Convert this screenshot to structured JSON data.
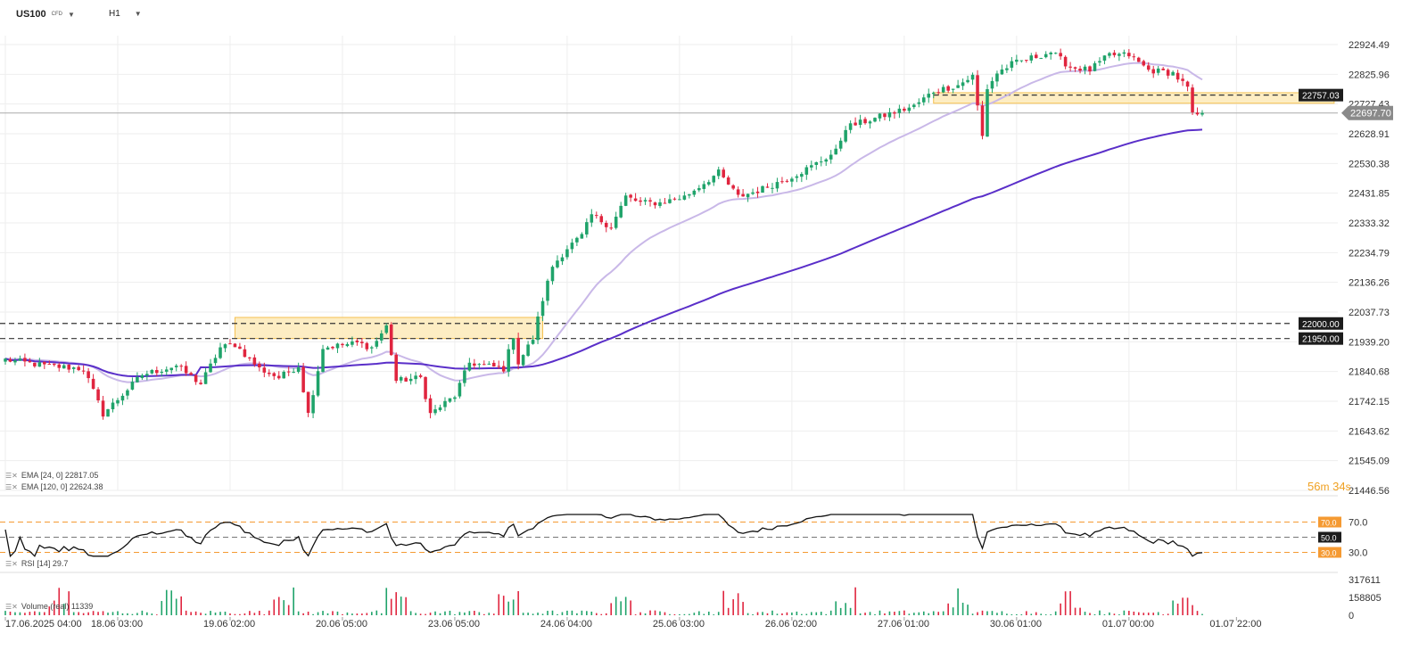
{
  "toolbar": {
    "symbol": "US100",
    "symbol_type": "CFD",
    "timeframe": "H1",
    "dropdown_icon": "chevron-down-icon"
  },
  "price_panel": {
    "y_ticks": [
      "22924.49",
      "22825.96",
      "22727.43",
      "22628.91",
      "22530.38",
      "22431.85",
      "22333.32",
      "22234.79",
      "22136.26",
      "22037.73",
      "21939.20",
      "21840.68",
      "21742.15",
      "21643.62",
      "21545.09",
      "21446.56"
    ],
    "current_price": "22697.70",
    "price_lines": [
      {
        "label": "22757.03",
        "value": 22757.03
      },
      {
        "label": "22000.00",
        "value": 22000.0
      },
      {
        "label": "21950.00",
        "value": 21950.0
      }
    ],
    "zones": [
      {
        "from_index": 47,
        "to_index": 110,
        "low": 21950,
        "high": 22020
      },
      {
        "from_index": 190,
        "to_index": 272,
        "low": 22730,
        "high": 22765
      }
    ],
    "timer": {
      "minutes": "56",
      "m": "m",
      "seconds": "34",
      "s": "s"
    }
  },
  "legends": {
    "ema24": "EMA  [24, 0]  22817.05",
    "ema120": "EMA  [120, 0]  22624.38",
    "rsi": "RSI  [14]  29.7",
    "volume": "Volume  (real)  11339"
  },
  "rsi_panel": {
    "y_ticks": [
      "70.0",
      "30.0"
    ],
    "level_labels": [
      "70.0",
      "50.0",
      "30.0"
    ]
  },
  "volume_panel": {
    "y_ticks": [
      "317611",
      "158805",
      "0"
    ]
  },
  "x_axis": {
    "labels": [
      {
        "text": "17.06.2025  04:00",
        "index": 0
      },
      {
        "text": "18.06  03:00",
        "index": 23
      },
      {
        "text": "19.06  02:00",
        "index": 46
      },
      {
        "text": "20.06  05:00",
        "index": 69
      },
      {
        "text": "23.06  05:00",
        "index": 92
      },
      {
        "text": "24.06  04:00",
        "index": 115
      },
      {
        "text": "25.06  03:00",
        "index": 138
      },
      {
        "text": "26.06  02:00",
        "index": 161
      },
      {
        "text": "27.06  01:00",
        "index": 184
      },
      {
        "text": "30.06  01:00",
        "index": 207
      },
      {
        "text": "01.07  00:00",
        "index": 230
      },
      {
        "text": "01.07  22:00",
        "index": 252
      }
    ]
  },
  "colors": {
    "up": "#1fa36a",
    "down": "#e0253f",
    "ema24": "#c9b8e8",
    "ema120": "#5a2fc9",
    "zone_fill": "#fde9b4",
    "zone_border": "#f5c050",
    "rsi_level": "#f59a32",
    "grid": "#eeeeee"
  },
  "chart_data": {
    "type": "candlestick",
    "symbol": "US100",
    "timeframe": "H1",
    "ylim": [
      21446.56,
      22940
    ],
    "candle_count": 246,
    "anchors": [
      [
        0,
        21880
      ],
      [
        8,
        21860
      ],
      [
        16,
        21850
      ],
      [
        20,
        21700
      ],
      [
        28,
        21830
      ],
      [
        35,
        21860
      ],
      [
        40,
        21800
      ],
      [
        44,
        21920
      ],
      [
        47,
        21930
      ],
      [
        52,
        21850
      ],
      [
        56,
        21820
      ],
      [
        60,
        21860
      ],
      [
        62,
        21700
      ],
      [
        65,
        21920
      ],
      [
        72,
        21935
      ],
      [
        75,
        21920
      ],
      [
        78,
        21990
      ],
      [
        80,
        21810
      ],
      [
        85,
        21820
      ],
      [
        87,
        21700
      ],
      [
        92,
        21760
      ],
      [
        95,
        21870
      ],
      [
        102,
        21850
      ],
      [
        104,
        21960
      ],
      [
        105,
        21870
      ],
      [
        108,
        21950
      ],
      [
        110,
        22080
      ],
      [
        112,
        22190
      ],
      [
        115,
        22250
      ],
      [
        118,
        22290
      ],
      [
        120,
        22360
      ],
      [
        124,
        22320
      ],
      [
        127,
        22420
      ],
      [
        130,
        22400
      ],
      [
        134,
        22400
      ],
      [
        139,
        22420
      ],
      [
        146,
        22500
      ],
      [
        150,
        22420
      ],
      [
        154,
        22440
      ],
      [
        160,
        22480
      ],
      [
        165,
        22520
      ],
      [
        170,
        22570
      ],
      [
        172,
        22650
      ],
      [
        180,
        22690
      ],
      [
        186,
        22720
      ],
      [
        190,
        22770
      ],
      [
        195,
        22790
      ],
      [
        198,
        22820
      ],
      [
        200,
        22620
      ],
      [
        201,
        22780
      ],
      [
        203,
        22830
      ],
      [
        206,
        22860
      ],
      [
        210,
        22880
      ],
      [
        214,
        22900
      ],
      [
        218,
        22850
      ],
      [
        222,
        22840
      ],
      [
        226,
        22890
      ],
      [
        230,
        22890
      ],
      [
        234,
        22840
      ],
      [
        239,
        22830
      ],
      [
        242,
        22780
      ],
      [
        243,
        22690
      ],
      [
        246,
        22697.7
      ]
    ],
    "ema24_final": 22817.05,
    "ema120_final": 22624.38,
    "rsi_final": 29.7,
    "volume_final": 11339,
    "volume_max": 317611
  }
}
